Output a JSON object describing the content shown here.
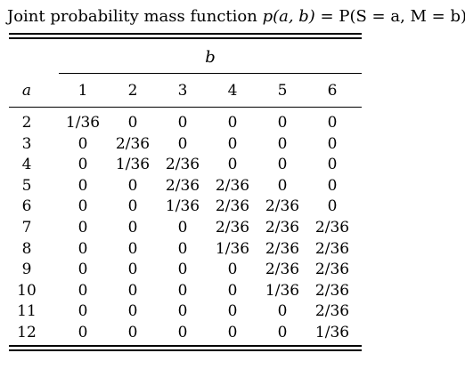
{
  "caption": {
    "prefix": "Joint probability mass function ",
    "lhs": "p(a, b)",
    "rhs": " = P(S = a, M = b)."
  },
  "table": {
    "group_header": "b",
    "row_header": "a",
    "columns": [
      "1",
      "2",
      "3",
      "4",
      "5",
      "6"
    ],
    "rows": [
      {
        "a": "2",
        "values": [
          "1/36",
          "0",
          "0",
          "0",
          "0",
          "0"
        ]
      },
      {
        "a": "3",
        "values": [
          "0",
          "2/36",
          "0",
          "0",
          "0",
          "0"
        ]
      },
      {
        "a": "4",
        "values": [
          "0",
          "1/36",
          "2/36",
          "0",
          "0",
          "0"
        ]
      },
      {
        "a": "5",
        "values": [
          "0",
          "0",
          "2/36",
          "2/36",
          "0",
          "0"
        ]
      },
      {
        "a": "6",
        "values": [
          "0",
          "0",
          "1/36",
          "2/36",
          "2/36",
          "0"
        ]
      },
      {
        "a": "7",
        "values": [
          "0",
          "0",
          "0",
          "2/36",
          "2/36",
          "2/36"
        ]
      },
      {
        "a": "8",
        "values": [
          "0",
          "0",
          "0",
          "1/36",
          "2/36",
          "2/36"
        ]
      },
      {
        "a": "9",
        "values": [
          "0",
          "0",
          "0",
          "0",
          "2/36",
          "2/36"
        ]
      },
      {
        "a": "10",
        "values": [
          "0",
          "0",
          "0",
          "0",
          "1/36",
          "2/36"
        ]
      },
      {
        "a": "11",
        "values": [
          "0",
          "0",
          "0",
          "0",
          "0",
          "2/36"
        ]
      },
      {
        "a": "12",
        "values": [
          "0",
          "0",
          "0",
          "0",
          "0",
          "1/36"
        ]
      }
    ]
  }
}
